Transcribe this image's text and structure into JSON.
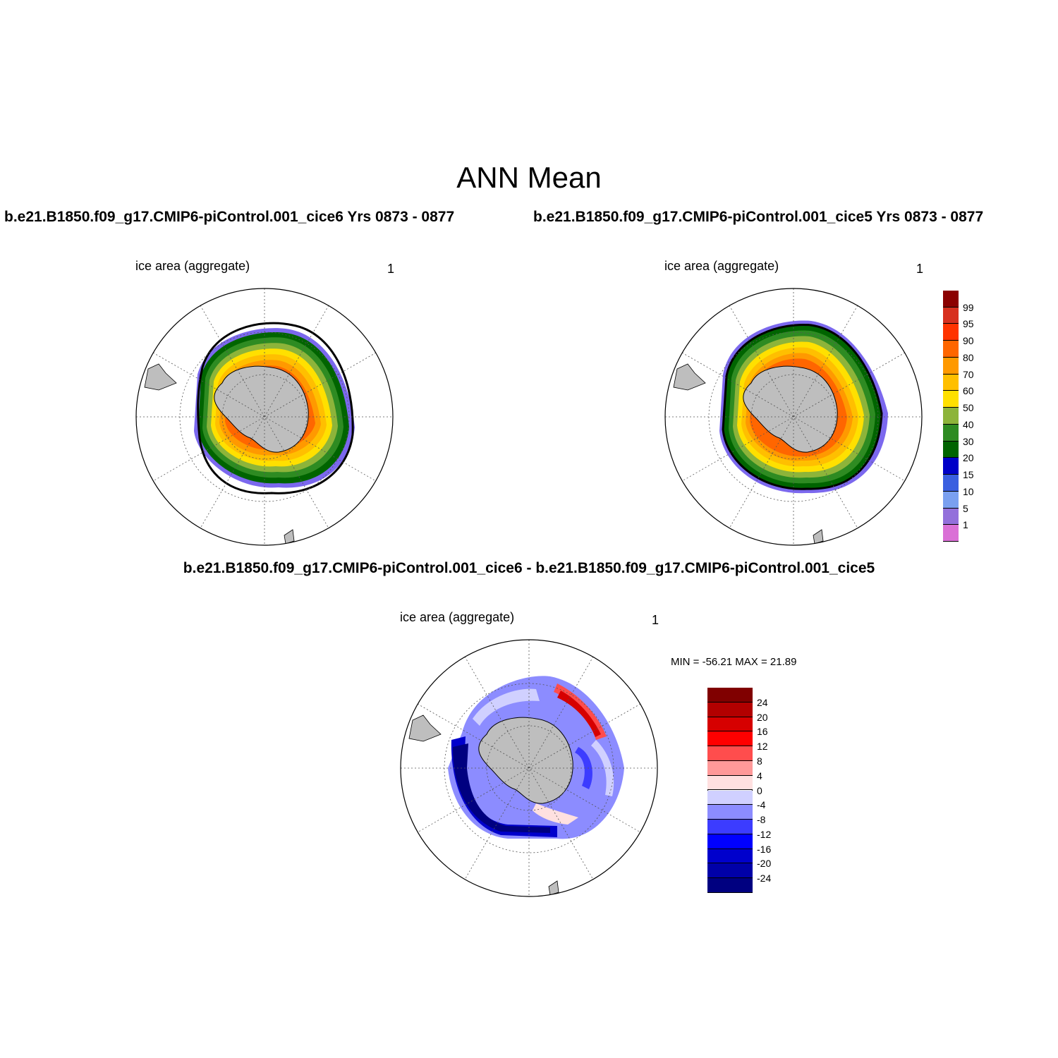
{
  "figure": {
    "title": "ANN Mean",
    "case1_title": "b.e21.B1850.f09_g17.CMIP6-piControl.001_cice6  Yrs 0873 - 0877",
    "case2_title": "b.e21.B1850.f09_g17.CMIP6-piControl.001_cice5  Yrs 0873 - 0877",
    "diff_title": "b.e21.B1850.f09_g17.CMIP6-piControl.001_cice6 - b.e21.B1850.f09_g17.CMIP6-piControl.001_cice5"
  },
  "panels": [
    {
      "label": "ice area  (aggregate)",
      "units": "1"
    },
    {
      "label": "ice area  (aggregate)",
      "units": "1"
    },
    {
      "label": "ice area  (aggregate)",
      "units": "1",
      "minmax": "MIN = -56.21 MAX =  21.89"
    }
  ],
  "chart_data": [
    {
      "type": "heatmap",
      "projection": "south-polar-stereographic",
      "title": "ice area  (aggregate)",
      "units": "1",
      "colorbar": {
        "levels": [
          "99",
          "95",
          "90",
          "80",
          "70",
          "60",
          "50",
          "40",
          "30",
          "20",
          "15",
          "10",
          "5",
          "1"
        ],
        "colors": [
          "#8b0000",
          "#d7301f",
          "#ff3300",
          "#ff6600",
          "#ff9900",
          "#ffbf00",
          "#ffe000",
          "#8db43a",
          "#2e8b22",
          "#006400",
          "#0000c8",
          "#3a5fe0",
          "#7aa0f0",
          "#9370db",
          "#da70d6"
        ]
      },
      "grid": true,
      "legend": "right"
    },
    {
      "type": "heatmap",
      "projection": "south-polar-stereographic",
      "title": "ice area  (aggregate)",
      "units": "1",
      "grid": true
    },
    {
      "type": "heatmap",
      "projection": "south-polar-stereographic",
      "title": "ice area  (aggregate)",
      "units": "1",
      "min": -56.21,
      "max": 21.89,
      "colorbar": {
        "levels": [
          "24",
          "20",
          "16",
          "12",
          "8",
          "4",
          "0",
          "-4",
          "-8",
          "-12",
          "-16",
          "-20",
          "-24"
        ],
        "colors": [
          "#800000",
          "#b20000",
          "#d60000",
          "#ff0000",
          "#ff4d4d",
          "#ff9999",
          "#ffe0e0",
          "#d0d0ff",
          "#8c8cff",
          "#3c3cff",
          "#0000ff",
          "#0000cc",
          "#0000a8",
          "#000080"
        ]
      },
      "grid": true,
      "legend": "right"
    }
  ]
}
